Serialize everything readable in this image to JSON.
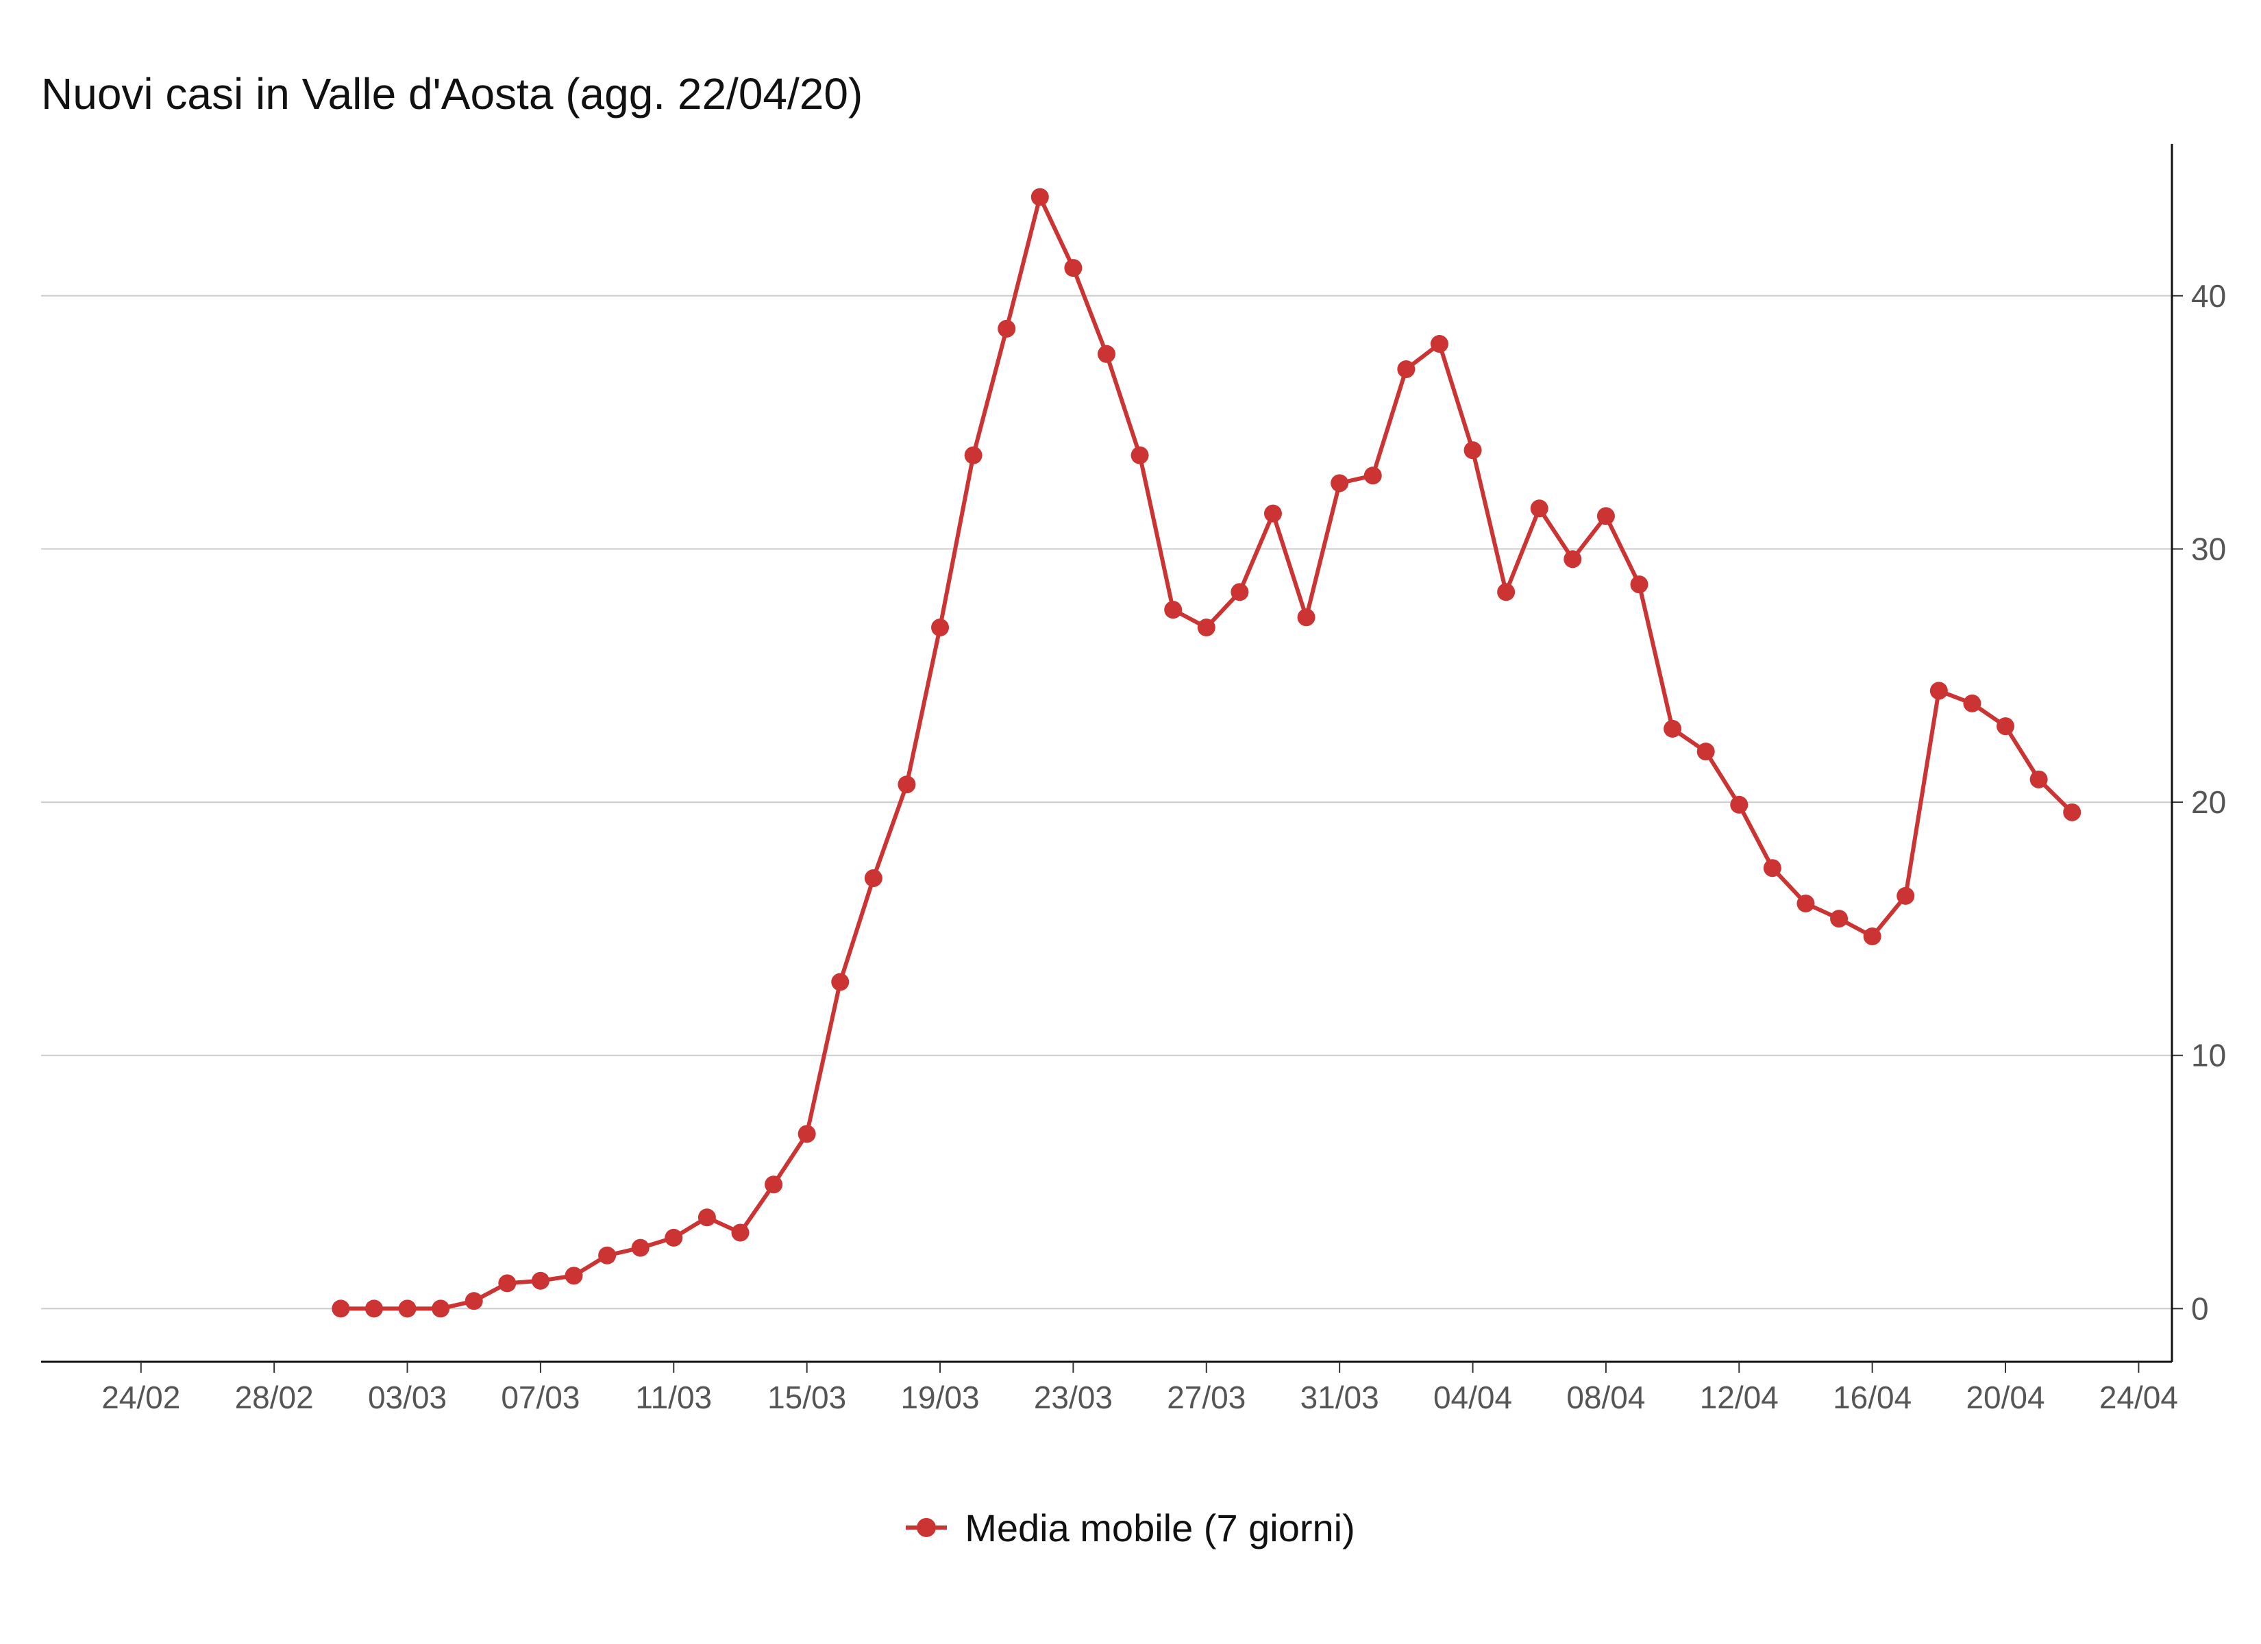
{
  "chart_data": {
    "type": "line",
    "title": "Nuovi casi in Valle d'Aosta (agg. 22/04/20)",
    "xlabel": "",
    "ylabel": "",
    "x_range": [
      "2020-02-21",
      "2020-04-25"
    ],
    "ylim": [
      -2.1,
      46
    ],
    "x_ticks": [
      {
        "date": "2020-02-24",
        "label": "24/02"
      },
      {
        "date": "2020-02-28",
        "label": "28/02"
      },
      {
        "date": "2020-03-03",
        "label": "03/03"
      },
      {
        "date": "2020-03-07",
        "label": "07/03"
      },
      {
        "date": "2020-03-11",
        "label": "11/03"
      },
      {
        "date": "2020-03-15",
        "label": "15/03"
      },
      {
        "date": "2020-03-19",
        "label": "19/03"
      },
      {
        "date": "2020-03-23",
        "label": "23/03"
      },
      {
        "date": "2020-03-27",
        "label": "27/03"
      },
      {
        "date": "2020-03-31",
        "label": "31/03"
      },
      {
        "date": "2020-04-04",
        "label": "04/04"
      },
      {
        "date": "2020-04-08",
        "label": "08/04"
      },
      {
        "date": "2020-04-12",
        "label": "12/04"
      },
      {
        "date": "2020-04-16",
        "label": "16/04"
      },
      {
        "date": "2020-04-20",
        "label": "20/04"
      },
      {
        "date": "2020-04-24",
        "label": "24/04"
      }
    ],
    "y_ticks": [
      0,
      10,
      20,
      30,
      40
    ],
    "grid": true,
    "y_axis_position": "right",
    "legend_position": "bottom-center",
    "series": [
      {
        "name": "Media mobile (7 giorni)",
        "color": "#cc3333",
        "marker": "circle",
        "start_date": "2020-03-01",
        "values": [
          0,
          0,
          0,
          0,
          0.3,
          1.0,
          1.1,
          1.3,
          2.1,
          2.4,
          2.8,
          3.6,
          3.0,
          4.9,
          6.9,
          12.9,
          17.0,
          20.7,
          26.9,
          33.7,
          38.7,
          43.9,
          41.1,
          37.7,
          33.7,
          27.6,
          26.9,
          28.3,
          31.4,
          27.3,
          32.6,
          32.9,
          37.1,
          38.1,
          33.9,
          28.3,
          31.6,
          29.6,
          31.3,
          28.6,
          22.9,
          22.0,
          19.9,
          17.4,
          16.0,
          15.4,
          14.7,
          16.3,
          24.4,
          23.9,
          23.0,
          20.9,
          19.6
        ]
      }
    ]
  }
}
